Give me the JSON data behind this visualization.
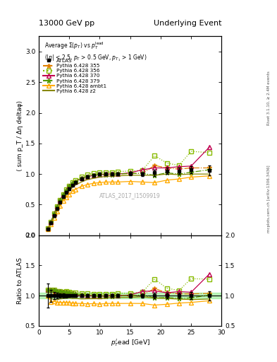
{
  "title_left": "13000 GeV pp",
  "title_right": "Underlying Event",
  "watermark": "ATLAS_2017_I1509919",
  "right_label_top": "Rivet 3.1.10, ≥ 2.4M events",
  "right_label_bot": "mcplots.cern.ch [arXiv:1306.3436]",
  "ylabel_main": "⟨ sum p_T / Δη deltaφ⟩",
  "ylabel_ratio": "Ratio to ATLAS",
  "xlabel": "p_T^{l}ead [GeV]",
  "ylim_main": [
    0,
    3.25
  ],
  "ylim_ratio": [
    0.5,
    2.0
  ],
  "xlim": [
    1,
    30
  ],
  "atlas_x": [
    1.5,
    2.0,
    2.5,
    3.0,
    3.5,
    4.0,
    4.5,
    5.0,
    5.5,
    6.0,
    7.0,
    8.0,
    9.0,
    10.0,
    11.0,
    12.0,
    13.0,
    15.0,
    17.0,
    19.0,
    21.0,
    23.0,
    25.0,
    28.0
  ],
  "atlas_y": [
    0.1,
    0.2,
    0.32,
    0.44,
    0.54,
    0.63,
    0.7,
    0.76,
    0.82,
    0.86,
    0.92,
    0.96,
    0.98,
    1.0,
    1.0,
    1.0,
    1.0,
    1.01,
    1.0,
    1.02,
    1.05,
    1.05,
    1.07,
    1.06
  ],
  "atlas_yerr": [
    0.02,
    0.02,
    0.02,
    0.02,
    0.02,
    0.02,
    0.02,
    0.02,
    0.02,
    0.02,
    0.02,
    0.02,
    0.02,
    0.02,
    0.02,
    0.02,
    0.02,
    0.03,
    0.03,
    0.05,
    0.05,
    0.05,
    0.06,
    0.08
  ],
  "series": [
    {
      "label": "Pythia 6.428 355",
      "color": "#e08000",
      "linestyle": "-.",
      "marker": "*",
      "markersize": 5,
      "markerfacecolor": "#e08000",
      "x": [
        1.5,
        2.0,
        2.5,
        3.0,
        3.5,
        4.0,
        4.5,
        5.0,
        5.5,
        6.0,
        7.0,
        8.0,
        9.0,
        10.0,
        11.0,
        12.0,
        13.0,
        15.0,
        17.0,
        19.0,
        21.0,
        23.0,
        25.0,
        28.0
      ],
      "y": [
        0.11,
        0.22,
        0.34,
        0.46,
        0.57,
        0.66,
        0.73,
        0.79,
        0.84,
        0.88,
        0.93,
        0.96,
        0.98,
        0.99,
        0.99,
        0.99,
        1.0,
        1.01,
        1.01,
        1.14,
        1.1,
        1.08,
        1.1,
        1.1
      ]
    },
    {
      "label": "Pythia 6.428 356",
      "color": "#88bb00",
      "linestyle": ":",
      "marker": "s",
      "markersize": 4,
      "markerfacecolor": "none",
      "x": [
        1.5,
        2.0,
        2.5,
        3.0,
        3.5,
        4.0,
        4.5,
        5.0,
        5.5,
        6.0,
        7.0,
        8.0,
        9.0,
        10.0,
        11.0,
        12.0,
        13.0,
        15.0,
        17.0,
        19.0,
        21.0,
        23.0,
        25.0,
        28.0
      ],
      "y": [
        0.11,
        0.22,
        0.35,
        0.47,
        0.58,
        0.67,
        0.75,
        0.81,
        0.86,
        0.9,
        0.95,
        0.99,
        1.01,
        1.02,
        1.03,
        1.03,
        1.04,
        1.05,
        1.06,
        1.3,
        1.18,
        1.14,
        1.37,
        1.35
      ]
    },
    {
      "label": "Pythia 6.428 370",
      "color": "#c0004e",
      "linestyle": "-",
      "marker": "^",
      "markersize": 4,
      "markerfacecolor": "none",
      "x": [
        1.5,
        2.0,
        2.5,
        3.0,
        3.5,
        4.0,
        4.5,
        5.0,
        5.5,
        6.0,
        7.0,
        8.0,
        9.0,
        10.0,
        11.0,
        12.0,
        13.0,
        15.0,
        17.0,
        19.0,
        21.0,
        23.0,
        25.0,
        28.0
      ],
      "y": [
        0.11,
        0.22,
        0.35,
        0.47,
        0.58,
        0.67,
        0.74,
        0.8,
        0.85,
        0.88,
        0.93,
        0.96,
        0.98,
        0.99,
        1.0,
        1.0,
        1.0,
        1.02,
        1.07,
        1.1,
        1.1,
        1.12,
        1.13,
        1.44
      ]
    },
    {
      "label": "Pythia 6.428 379",
      "color": "#559900",
      "linestyle": "-.",
      "marker": "*",
      "markersize": 5,
      "markerfacecolor": "#559900",
      "x": [
        1.5,
        2.0,
        2.5,
        3.0,
        3.5,
        4.0,
        4.5,
        5.0,
        5.5,
        6.0,
        7.0,
        8.0,
        9.0,
        10.0,
        11.0,
        12.0,
        13.0,
        15.0,
        17.0,
        19.0,
        21.0,
        23.0,
        25.0,
        28.0
      ],
      "y": [
        0.11,
        0.22,
        0.35,
        0.47,
        0.58,
        0.67,
        0.74,
        0.8,
        0.85,
        0.88,
        0.93,
        0.96,
        0.98,
        0.99,
        0.99,
        0.99,
        1.0,
        1.01,
        1.01,
        0.98,
        1.02,
        1.0,
        1.03,
        1.07
      ]
    },
    {
      "label": "Pythia 6.428 ambt1",
      "color": "#ffaa00",
      "linestyle": "-",
      "marker": "^",
      "markersize": 4,
      "markerfacecolor": "none",
      "x": [
        1.5,
        2.0,
        2.5,
        3.0,
        3.5,
        4.0,
        4.5,
        5.0,
        5.5,
        6.0,
        7.0,
        8.0,
        9.0,
        10.0,
        11.0,
        12.0,
        13.0,
        15.0,
        17.0,
        19.0,
        21.0,
        23.0,
        25.0,
        28.0
      ],
      "y": [
        0.1,
        0.18,
        0.29,
        0.39,
        0.48,
        0.56,
        0.62,
        0.67,
        0.72,
        0.75,
        0.8,
        0.83,
        0.85,
        0.86,
        0.87,
        0.87,
        0.87,
        0.88,
        0.87,
        0.86,
        0.9,
        0.92,
        0.95,
        0.97
      ]
    },
    {
      "label": "Pythia 6.428 z2",
      "color": "#888800",
      "linestyle": "-",
      "marker": null,
      "markersize": 0,
      "markerfacecolor": "#888800",
      "x": [
        1.5,
        2.0,
        2.5,
        3.0,
        3.5,
        4.0,
        4.5,
        5.0,
        5.5,
        6.0,
        7.0,
        8.0,
        9.0,
        10.0,
        11.0,
        12.0,
        13.0,
        15.0,
        17.0,
        19.0,
        21.0,
        23.0,
        25.0,
        28.0
      ],
      "y": [
        0.1,
        0.19,
        0.3,
        0.41,
        0.51,
        0.6,
        0.67,
        0.73,
        0.78,
        0.82,
        0.87,
        0.91,
        0.93,
        0.95,
        0.96,
        0.97,
        0.97,
        0.98,
        0.98,
        0.98,
        1.0,
        0.99,
        1.0,
        1.0
      ]
    }
  ],
  "atlas_band_color": "#90ee90",
  "atlas_band_alpha": 0.6,
  "yticks_main": [
    0,
    0.5,
    1.0,
    1.5,
    2.0,
    2.5,
    3.0
  ],
  "yticks_ratio": [
    0.5,
    1.0,
    1.5,
    2.0
  ],
  "xticks": [
    0,
    5,
    10,
    15,
    20,
    25,
    30
  ]
}
